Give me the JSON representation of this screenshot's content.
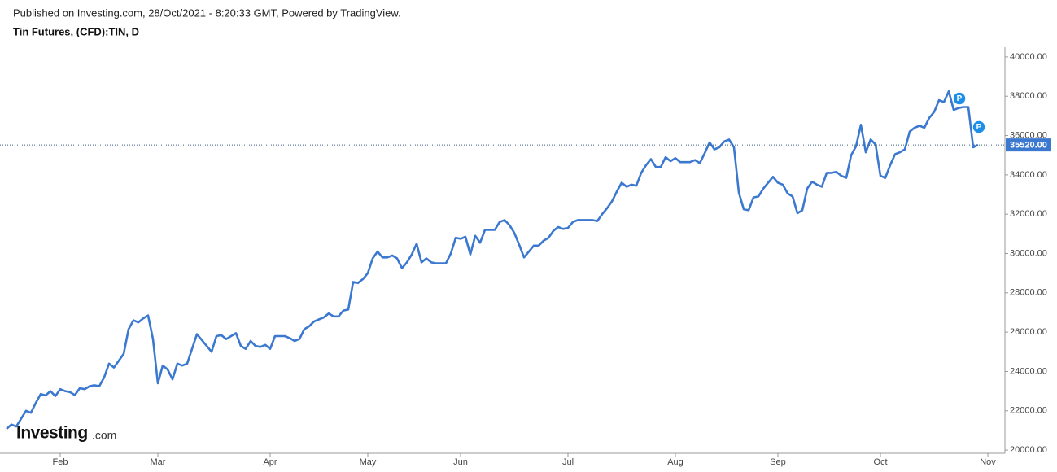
{
  "chart_data": {
    "type": "line",
    "subtitle": "Published on Investing.com, 28/Oct/2021 - 8:20:33 GMT, Powered by TradingView.",
    "title": "Tin Futures, (CFD):TIN, D",
    "logo": {
      "main": "Investing",
      "suffix": ".com"
    },
    "color": "#3b78cf",
    "categories": [
      null,
      null,
      null,
      null,
      null,
      null,
      null,
      null,
      null,
      null,
      null,
      "Feb",
      null,
      null,
      null,
      null,
      null,
      null,
      null,
      null,
      null,
      null,
      null,
      null,
      null,
      null,
      null,
      null,
      null,
      null,
      null,
      "Mar",
      null,
      null,
      null,
      null,
      null,
      null,
      null,
      null,
      null,
      null,
      null,
      null,
      null,
      null,
      null,
      null,
      null,
      null,
      null,
      null,
      null,
      null,
      "Apr",
      null,
      null,
      null,
      null,
      null,
      null,
      null,
      null,
      null,
      null,
      null,
      null,
      null,
      null,
      null,
      null,
      null,
      null,
      null,
      "May",
      null,
      null,
      null,
      null,
      null,
      null,
      null,
      null,
      null,
      null,
      null,
      null,
      null,
      null,
      null,
      null,
      null,
      null,
      "Jun",
      null,
      null,
      null,
      null,
      null,
      null,
      null,
      null,
      null,
      null,
      null,
      null,
      null,
      null,
      null,
      null,
      null,
      null,
      null,
      null,
      null,
      "Jul",
      null,
      null,
      null,
      null,
      null,
      null,
      null,
      null,
      null,
      null,
      null,
      null,
      null,
      null,
      null,
      null,
      null,
      null,
      null,
      null,
      null,
      "Aug",
      null,
      null,
      null,
      null,
      null,
      null,
      null,
      null,
      null,
      null,
      null,
      null,
      null,
      null,
      null,
      null,
      null,
      null,
      null,
      null,
      "Sep",
      null,
      null,
      null,
      null,
      null,
      null,
      null,
      null,
      null,
      null,
      null,
      null,
      null,
      null,
      null,
      null,
      null,
      null,
      null,
      null,
      "Oct",
      null,
      null,
      null,
      null,
      null,
      null,
      null,
      null,
      null,
      null,
      null,
      null,
      null,
      null,
      null,
      null,
      null,
      null,
      null,
      null,
      null,
      "Nov"
    ],
    "values": [
      21080,
      21300,
      21200,
      21600,
      22000,
      21900,
      22400,
      22850,
      22780,
      23000,
      22750,
      23100,
      23000,
      22950,
      22800,
      23150,
      23100,
      23250,
      23300,
      23250,
      23700,
      24400,
      24200,
      24550,
      24900,
      26150,
      26600,
      26500,
      26700,
      26850,
      25650,
      23400,
      24300,
      24100,
      23600,
      24400,
      24300,
      24400,
      25150,
      25900,
      25600,
      25300,
      25000,
      25800,
      25850,
      25650,
      25800,
      25950,
      25300,
      25150,
      25550,
      25300,
      25250,
      25350,
      25150,
      25800,
      25800,
      25800,
      25700,
      25550,
      25650,
      26150,
      26300,
      26550,
      26650,
      26750,
      26950,
      26800,
      26800,
      27100,
      27150,
      28550,
      28500,
      28700,
      29000,
      29750,
      30100,
      29800,
      29800,
      29900,
      29750,
      29250,
      29550,
      29950,
      30500,
      29550,
      29750,
      29550,
      29500,
      29500,
      29500,
      30000,
      30800,
      30750,
      30850,
      29950,
      30900,
      30550,
      31200,
      31200,
      31200,
      31600,
      31700,
      31450,
      31050,
      30450,
      29800,
      30100,
      30400,
      30400,
      30650,
      30800,
      31150,
      31350,
      31250,
      31300,
      31600,
      31700,
      31700,
      31700,
      31700,
      31650,
      32000,
      32300,
      32650,
      33150,
      33600,
      33400,
      33500,
      33450,
      34100,
      34500,
      34800,
      34400,
      34400,
      34900,
      34700,
      34850,
      34650,
      34650,
      34650,
      34750,
      34600,
      35100,
      35650,
      35300,
      35400,
      35700,
      35800,
      35400,
      33100,
      32250,
      32200,
      32850,
      32900,
      33300,
      33600,
      33900,
      33600,
      33500,
      33050,
      32900,
      32050,
      32200,
      33300,
      33650,
      33500,
      33400,
      34100,
      34100,
      34150,
      33950,
      33850,
      35000,
      35450,
      36550,
      35150,
      35800,
      35550,
      33950,
      33850,
      34500,
      35050,
      35150,
      35300,
      36200,
      36400,
      36500,
      36400,
      36900,
      37200,
      37800,
      37700,
      38250,
      37300,
      37400,
      37450,
      37450,
      35400,
      35520,
      null,
      null
    ],
    "ylim": [
      19880,
      40410
    ],
    "yticks": [
      {
        "value": 20000,
        "label": "20000.00"
      },
      {
        "value": 22000,
        "label": "22000.00"
      },
      {
        "value": 24000,
        "label": "24000.00"
      },
      {
        "value": 26000,
        "label": "26000.00"
      },
      {
        "value": 28000,
        "label": "28000.00"
      },
      {
        "value": 30000,
        "label": "30000.00"
      },
      {
        "value": 32000,
        "label": "32000.00"
      },
      {
        "value": 34000,
        "label": "34000.00"
      },
      {
        "value": 36000,
        "label": "36000.00"
      },
      {
        "value": 38000,
        "label": "38000.00"
      },
      {
        "value": 40000,
        "label": "40000.00"
      }
    ],
    "last_price": {
      "value": 35520,
      "label": "35520.00"
    },
    "annotations": [
      "P",
      "P"
    ],
    "grid": false
  }
}
